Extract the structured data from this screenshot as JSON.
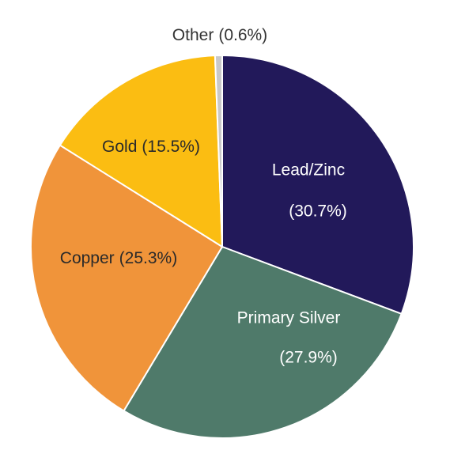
{
  "chart_data": {
    "type": "pie",
    "categories": [
      "Lead/Zinc",
      "Primary Silver",
      "Copper",
      "Gold",
      "Other"
    ],
    "values": [
      30.7,
      27.9,
      25.3,
      15.5,
      0.6
    ],
    "value_labels": [
      "(30.7%)",
      "(27.9%)",
      "(25.3%)",
      "(15.5%)",
      "(0.6%)"
    ],
    "colors": [
      "#22195a",
      "#4f7a6a",
      "#f0943a",
      "#fbbd12",
      "#c9c9c9"
    ]
  }
}
